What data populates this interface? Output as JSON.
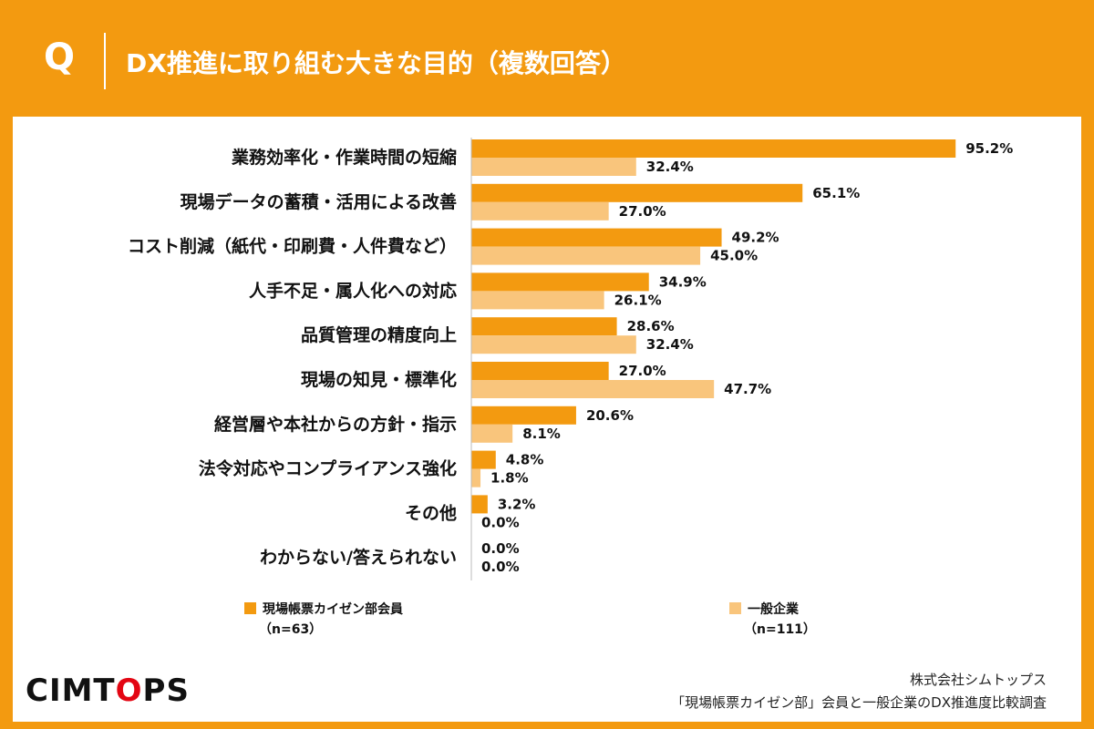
{
  "header": {
    "q_label": "Q",
    "title": "DX推進に取り組む大きな目的（複数回答）"
  },
  "colors": {
    "background": "#f39a10",
    "series_primary": "#f39a10",
    "series_secondary": "#f9c57c"
  },
  "chart_data": {
    "type": "bar",
    "orientation": "horizontal",
    "categories": [
      "業務効率化・作業時間の短縮",
      "現場データの蓄積・活用による改善",
      "コスト削減（紙代・印刷費・人件費など）",
      "人手不足・属人化への対応",
      "品質管理の精度向上",
      "現場の知見・標準化",
      "経営層や本社からの方針・指示",
      "法令対応やコンプライアンス強化",
      "その他",
      "わからない/答えられない"
    ],
    "series": [
      {
        "name": "現場帳票カイゼン部会員",
        "n_label": "（n=63）",
        "color": "#f39a10",
        "values": [
          95.2,
          65.1,
          49.2,
          34.9,
          28.6,
          27.0,
          20.6,
          4.8,
          3.2,
          0.0
        ],
        "labels": [
          "95.2%",
          "65.1%",
          "49.2%",
          "34.9%",
          "28.6%",
          "27.0%",
          "20.6%",
          "4.8%",
          "3.2%",
          "0.0%"
        ]
      },
      {
        "name": "一般企業",
        "n_label": "（n=111）",
        "color": "#f9c57c",
        "values": [
          32.4,
          27.0,
          45.0,
          26.1,
          32.4,
          47.7,
          8.1,
          1.8,
          0.0,
          0.0
        ],
        "labels": [
          "32.4%",
          "27.0%",
          "45.0%",
          "26.1%",
          "32.4%",
          "47.7%",
          "8.1%",
          "1.8%",
          "0.0%",
          "0.0%"
        ]
      }
    ],
    "xlim": [
      0,
      100
    ],
    "grid": false,
    "legend_position": "bottom"
  },
  "footer": {
    "brand": {
      "pre": "CIMT",
      "o": "O",
      "post": "PS"
    },
    "company": "株式会社シムトップス",
    "source": "「現場帳票カイゼン部」会員と一般企業のDX推進度比較調査"
  }
}
